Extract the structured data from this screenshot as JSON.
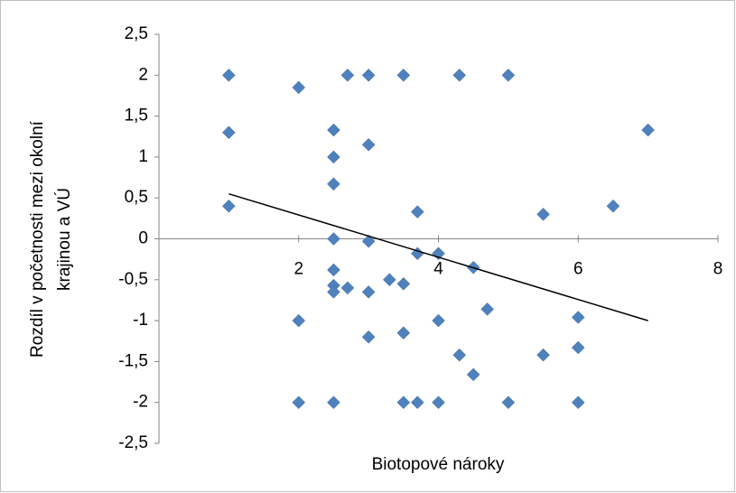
{
  "chart_data": {
    "type": "scatter",
    "xlabel": "Biotopové nároky",
    "ylabel": [
      "Rozdíl v početnosti mezi okolní",
      "krajinou a VÚ"
    ],
    "color": "#4f81bd",
    "x": [
      1,
      1,
      1,
      2,
      2,
      2,
      2.5,
      2.5,
      2.5,
      2.5,
      2.5,
      2.5,
      2.5,
      2.5,
      2.7,
      2.7,
      3,
      3,
      3,
      3,
      3,
      3.3,
      3.5,
      3.5,
      3.5,
      3.5,
      3.7,
      3.7,
      3.7,
      4,
      4,
      4,
      4.3,
      4.3,
      4.5,
      4.5,
      4.7,
      5,
      5,
      5.5,
      5.5,
      6,
      6,
      6,
      6.5,
      7
    ],
    "y": [
      2,
      1.3,
      0.4,
      1.85,
      -1,
      -2,
      1.33,
      1,
      0.67,
      0,
      -0.38,
      -0.57,
      -0.65,
      -2,
      2,
      -0.6,
      2,
      1.15,
      -0.03,
      -0.65,
      -1.2,
      -0.5,
      2,
      -0.55,
      -1.15,
      -2,
      0.33,
      -0.18,
      -2,
      -0.18,
      -1,
      -2,
      2,
      -1.42,
      -0.35,
      -1.66,
      -0.86,
      2,
      -2,
      0.3,
      -1.42,
      -0.96,
      -1.33,
      -2,
      0.4,
      1.33
    ],
    "trendline": {
      "color": "#000000",
      "x": [
        1,
        7
      ],
      "y": [
        0.55,
        -1.0
      ]
    },
    "xlim": [
      0,
      8
    ],
    "xticks": [
      2,
      4,
      6,
      8
    ],
    "ylim": [
      -2.5,
      2.5
    ],
    "yticks": [
      {
        "value": -2.5,
        "label": "-2,5"
      },
      -2,
      {
        "value": -1.5,
        "label": "-1,5"
      },
      -1,
      {
        "value": -0.5,
        "label": "-0,5"
      },
      0,
      {
        "value": 0.5,
        "label": "0,5"
      },
      1,
      {
        "value": 1.5,
        "label": "1,5"
      },
      2,
      {
        "value": 2.5,
        "label": "2,5"
      }
    ],
    "grid": false
  }
}
